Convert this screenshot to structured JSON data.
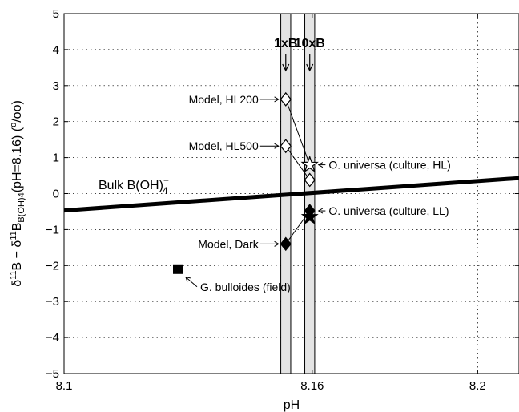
{
  "chart_data": {
    "type": "scatter",
    "xlabel": "pH",
    "ylabel": "δ11B − δ11B B(OH)4 (pH=8.16) (o/oo)",
    "ylabel_parts": {
      "d1": "δ",
      "sup1": "11",
      "b1": "B − ",
      "d2": "δ",
      "sup2": "11",
      "b2": "B",
      "sub": "B(OH)4",
      "rest": "(pH=8.16) (",
      "o1": "o",
      "slash": "/",
      "o2": "oo",
      "close": ")"
    },
    "xlim": [
      8.1,
      8.21
    ],
    "ylim": [
      -5,
      5
    ],
    "x_ticks": [
      {
        "value": 8.1,
        "label": "8.1"
      },
      {
        "value": 8.16,
        "label": "8.16"
      },
      {
        "value": 8.2,
        "label": "8.2"
      }
    ],
    "y_ticks": [
      {
        "value": -5,
        "label": "−5"
      },
      {
        "value": -4,
        "label": "−4"
      },
      {
        "value": -3,
        "label": "−3"
      },
      {
        "value": -2,
        "label": "−2"
      },
      {
        "value": -1,
        "label": "−1"
      },
      {
        "value": 0,
        "label": "0"
      },
      {
        "value": 1,
        "label": "1"
      },
      {
        "value": 2,
        "label": "2"
      },
      {
        "value": 3,
        "label": "3"
      },
      {
        "value": 4,
        "label": "4"
      },
      {
        "value": 5,
        "label": "5"
      }
    ],
    "grid": true,
    "bands": [
      {
        "name": "1xB",
        "x0": 8.1524,
        "x1": 8.1548,
        "label_x": 8.1536
      },
      {
        "name": "10xB",
        "x0": 8.1582,
        "x1": 8.1606,
        "label_x": 8.1594
      }
    ],
    "bulk_line": {
      "label": "Bulk B(OH)",
      "superscript": "−",
      "subscript": "4",
      "x": [
        8.1,
        8.21
      ],
      "y": [
        -0.47,
        0.43
      ]
    },
    "points": [
      {
        "id": "hl200",
        "x": 8.1536,
        "y": 2.62,
        "marker": "diamond-open",
        "label": "Model, HL200"
      },
      {
        "id": "hl500",
        "x": 8.1536,
        "y": 1.32,
        "marker": "diamond-open",
        "label": "Model, HL500"
      },
      {
        "id": "dark",
        "x": 8.1536,
        "y": -1.4,
        "marker": "diamond-filled",
        "label": "Model, Dark"
      },
      {
        "id": "ou-hl-star",
        "x": 8.1594,
        "y": 0.8,
        "marker": "star-open",
        "label": "O. universa (culture, HL)"
      },
      {
        "id": "ou-hl-diamond",
        "x": 8.1594,
        "y": 0.38,
        "marker": "diamond-open",
        "label": ""
      },
      {
        "id": "ou-ll-diamond",
        "x": 8.1594,
        "y": -0.48,
        "marker": "diamond-filled",
        "label": "O. universa (culture, LL)"
      },
      {
        "id": "ou-ll-star",
        "x": 8.1594,
        "y": -0.65,
        "marker": "star-filled",
        "label": ""
      },
      {
        "id": "bulloides",
        "x": 8.1275,
        "y": -2.1,
        "marker": "square-filled",
        "label": "G. bulloides (field)"
      }
    ],
    "connectors": [
      {
        "from": "hl200",
        "to": "ou-hl-star"
      },
      {
        "from": "hl500",
        "to": "ou-hl-diamond"
      },
      {
        "from": "dark",
        "to": "ou-ll-diamond"
      }
    ]
  }
}
